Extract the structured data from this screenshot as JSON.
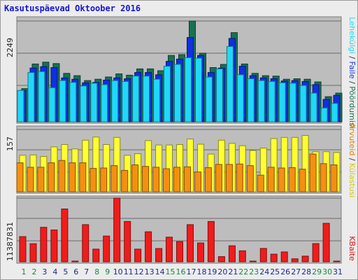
{
  "title": "Kasutuspäevad Oktoober 2016",
  "chart_data": {
    "type": "bar",
    "title": "Kasutuspäevad Oktoober 2016",
    "days": [
      "1",
      "2",
      "3",
      "4",
      "5",
      "6",
      "7",
      "8",
      "9",
      "10",
      "11",
      "12",
      "13",
      "14",
      "15",
      "16",
      "17",
      "18",
      "19",
      "20",
      "21",
      "22",
      "23",
      "24",
      "25",
      "26",
      "27",
      "28",
      "29",
      "30",
      "31"
    ],
    "weekend_days": [
      "1",
      "2",
      "8",
      "9",
      "15",
      "16",
      "22",
      "23",
      "29",
      "30"
    ],
    "panels": [
      {
        "id": "top",
        "ytick": "2249",
        "ylim": [
          0,
          2249
        ],
        "series": [
          {
            "name": "Pöördumisi",
            "color": "#1a7050",
            "values": [
              740,
              1290,
              1330,
              1300,
              1080,
              1030,
              920,
              950,
              1000,
              1070,
              1040,
              1180,
              1180,
              1140,
              1480,
              1500,
              2249,
              1530,
              1210,
              1280,
              1990,
              1290,
              1080,
              1030,
              1020,
              950,
              960,
              950,
              890,
              560,
              640
            ]
          },
          {
            "name": "Faile",
            "color": "#1030e0",
            "values": [
              700,
              1200,
              1230,
              1210,
              980,
              950,
              870,
              880,
              930,
              980,
              960,
              1100,
              1100,
              1050,
              1350,
              1400,
              1880,
              1480,
              1100,
              1200,
              1860,
              1240,
              1030,
              980,
              960,
              910,
              920,
              900,
              830,
              500,
              590
            ]
          },
          {
            "name": "Lehekülgi",
            "color": "#20d8f8",
            "values": [
              700,
              1100,
              1120,
              760,
              920,
              880,
              800,
              860,
              830,
              920,
              900,
              1020,
              1020,
              950,
              1240,
              1280,
              1430,
              1420,
              1000,
              1180,
              1680,
              1050,
              960,
              920,
              900,
              870,
              860,
              810,
              640,
              310,
              410
            ]
          }
        ],
        "right_labels": [
          {
            "text": "Pöördumisi",
            "color": "#1a7050"
          },
          {
            "text": "Faile",
            "color": "#1030e0"
          },
          {
            "text": "Lehekülgi",
            "color": "#20d8f8"
          }
        ]
      },
      {
        "id": "middle",
        "ytick": "157",
        "ylim": [
          0,
          157
        ],
        "series": [
          {
            "name": "Külastusi",
            "color": "#ffff30",
            "values": [
              92,
              93,
              89,
              113,
              119,
              108,
              130,
              138,
              119,
              137,
              92,
              96,
              129,
              118,
              118,
              119,
              133,
              120,
              95,
              130,
              122,
              116,
              104,
              110,
              134,
              137,
              137,
              142,
              101,
              101,
              99
            ]
          },
          {
            "name": "Arvuteid",
            "color": "#f49010",
            "values": [
              73,
              62,
              62,
              73,
              79,
              73,
              73,
              59,
              60,
              66,
              54,
              68,
              64,
              62,
              58,
              62,
              63,
              50,
              61,
              69,
              69,
              70,
              66,
              42,
              62,
              60,
              61,
              57,
              95,
              71,
              68
            ]
          }
        ],
        "right_labels": [
          {
            "text": "Külastusi",
            "color": "#d4c800"
          },
          {
            "text": "Arvuteid",
            "color": "#e08000"
          }
        ]
      },
      {
        "id": "bottom",
        "ytick": "11387831",
        "ylim": [
          0,
          11387831
        ],
        "series": [
          {
            "name": "KBaite",
            "color": "#f01c1c",
            "values": [
              4510000,
              3230000,
              6170000,
              5690000,
              9450000,
              120000,
              6650000,
              2260000,
              4600000,
              11387831,
              7210000,
              2260000,
              5370000,
              2380000,
              4410000,
              3610000,
              6650000,
              3370000,
              7210000,
              930000,
              2870000,
              1970000,
              120000,
              2390000,
              1370000,
              1770000,
              540000,
              1010000,
              3250000,
              6880000,
              120000
            ]
          }
        ],
        "right_labels": [
          {
            "text": "KBaite",
            "color": "#e01010"
          }
        ]
      }
    ],
    "right_separator": "/"
  }
}
